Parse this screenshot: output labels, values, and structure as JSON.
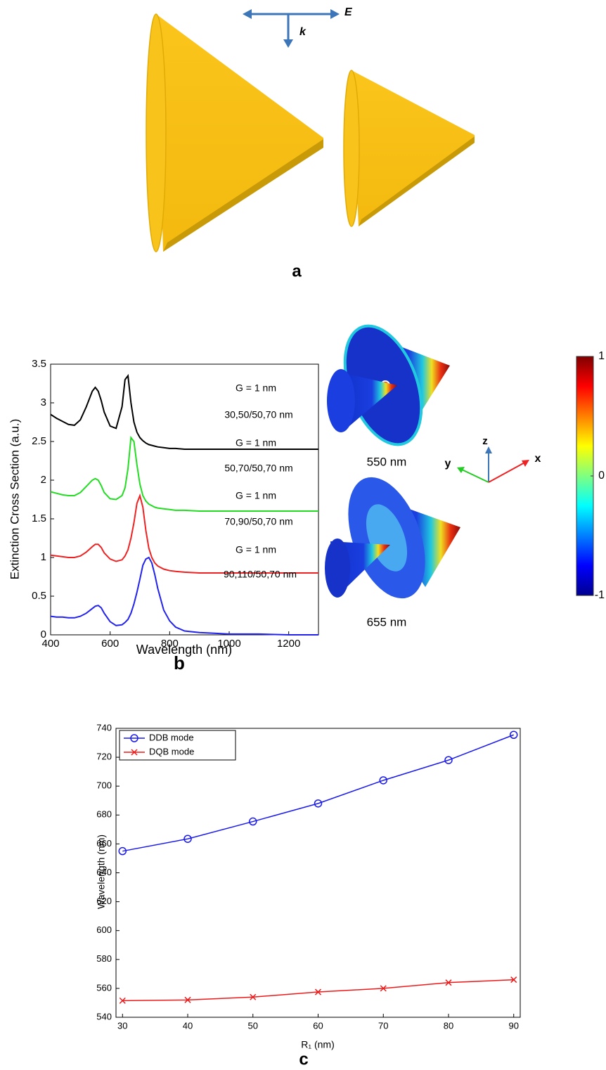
{
  "panel_a": {
    "label": "a",
    "e_label": "E",
    "k_label": "k"
  },
  "chart_data": [
    {
      "type": "line",
      "panel_label": "b",
      "x_label": "Wavelength (nm)",
      "y_label": "Extinction Cross Section (a.u.)",
      "x": [
        400,
        420,
        440,
        460,
        480,
        500,
        520,
        540,
        550,
        560,
        570,
        580,
        600,
        620,
        640,
        650,
        660,
        670,
        680,
        690,
        700,
        710,
        720,
        730,
        740,
        750,
        760,
        780,
        800,
        820,
        850,
        900,
        950,
        1000,
        1100,
        1200,
        1300
      ],
      "series": [
        {
          "color": "#000000",
          "values": [
            2.85,
            2.8,
            2.76,
            2.72,
            2.71,
            2.78,
            2.95,
            3.15,
            3.2,
            3.15,
            3.03,
            2.88,
            2.7,
            2.67,
            2.95,
            3.3,
            3.35,
            3.0,
            2.75,
            2.62,
            2.55,
            2.51,
            2.48,
            2.46,
            2.45,
            2.44,
            2.43,
            2.42,
            2.41,
            2.41,
            2.4,
            2.4,
            2.4,
            2.4,
            2.4,
            2.4,
            2.4
          ]
        },
        {
          "color": "#22dd22",
          "values": [
            1.85,
            1.83,
            1.81,
            1.8,
            1.8,
            1.84,
            1.92,
            2.0,
            2.02,
            2.0,
            1.93,
            1.84,
            1.76,
            1.75,
            1.8,
            1.9,
            2.15,
            2.55,
            2.5,
            2.2,
            1.95,
            1.8,
            1.73,
            1.69,
            1.67,
            1.65,
            1.64,
            1.63,
            1.62,
            1.61,
            1.61,
            1.6,
            1.6,
            1.6,
            1.6,
            1.6,
            1.6
          ]
        },
        {
          "color": "#ee2222",
          "values": [
            1.03,
            1.02,
            1.01,
            1.0,
            1.0,
            1.02,
            1.07,
            1.14,
            1.17,
            1.17,
            1.13,
            1.06,
            0.98,
            0.95,
            0.97,
            1.02,
            1.1,
            1.25,
            1.45,
            1.7,
            1.8,
            1.65,
            1.35,
            1.12,
            1.0,
            0.93,
            0.89,
            0.85,
            0.83,
            0.82,
            0.81,
            0.8,
            0.8,
            0.8,
            0.8,
            0.8,
            0.8
          ]
        },
        {
          "color": "#2222ee",
          "values": [
            0.24,
            0.23,
            0.23,
            0.22,
            0.22,
            0.24,
            0.28,
            0.34,
            0.37,
            0.38,
            0.35,
            0.28,
            0.17,
            0.12,
            0.13,
            0.16,
            0.2,
            0.28,
            0.4,
            0.55,
            0.72,
            0.9,
            0.98,
            1.0,
            0.93,
            0.78,
            0.6,
            0.32,
            0.18,
            0.1,
            0.05,
            0.03,
            0.02,
            0.01,
            0.01,
            0,
            0
          ]
        }
      ],
      "xlim": [
        400,
        1300
      ],
      "xticks": [
        400,
        600,
        800,
        1000,
        1200
      ],
      "ylim": [
        0,
        3.5
      ],
      "yticks": [
        0,
        0.5,
        1,
        1.5,
        2,
        2.5,
        3,
        3.5
      ],
      "annotations": [
        "G = 1 nm",
        "30,50/50,70 nm",
        "G = 1 nm",
        "50,70/50,70 nm",
        "G = 1 nm",
        "70,90/50,70 nm",
        "G = 1 nm",
        "90,110/50,70 nm"
      ],
      "inset_labels": [
        "550 nm",
        "655 nm"
      ],
      "axis_triad": [
        "z",
        "y",
        "x"
      ],
      "colorbar_lim": [
        -1,
        1
      ],
      "colorbar_ticks": [
        1,
        0,
        -1
      ]
    },
    {
      "type": "line",
      "panel_label": "c",
      "x_label": "R₁ (nm)",
      "y_label": "Wavelength (nm)",
      "x": [
        30,
        40,
        50,
        60,
        70,
        80,
        90
      ],
      "series": [
        {
          "name": "DDB mode",
          "color": "#1a1aee",
          "marker": "circle",
          "values": [
            655,
            663.5,
            675.5,
            688,
            704,
            718,
            735.5
          ]
        },
        {
          "name": "DQB mode",
          "color": "#ee1a1a",
          "marker": "x",
          "values": [
            551.5,
            552,
            554,
            557.5,
            560,
            564,
            566
          ]
        }
      ],
      "xlim": [
        29,
        91
      ],
      "xticks": [
        30,
        40,
        50,
        60,
        70,
        80,
        90
      ],
      "ylim": [
        540,
        740
      ],
      "yticks": [
        540,
        560,
        580,
        600,
        620,
        640,
        660,
        680,
        700,
        720,
        740
      ],
      "legend": "upper left"
    }
  ]
}
